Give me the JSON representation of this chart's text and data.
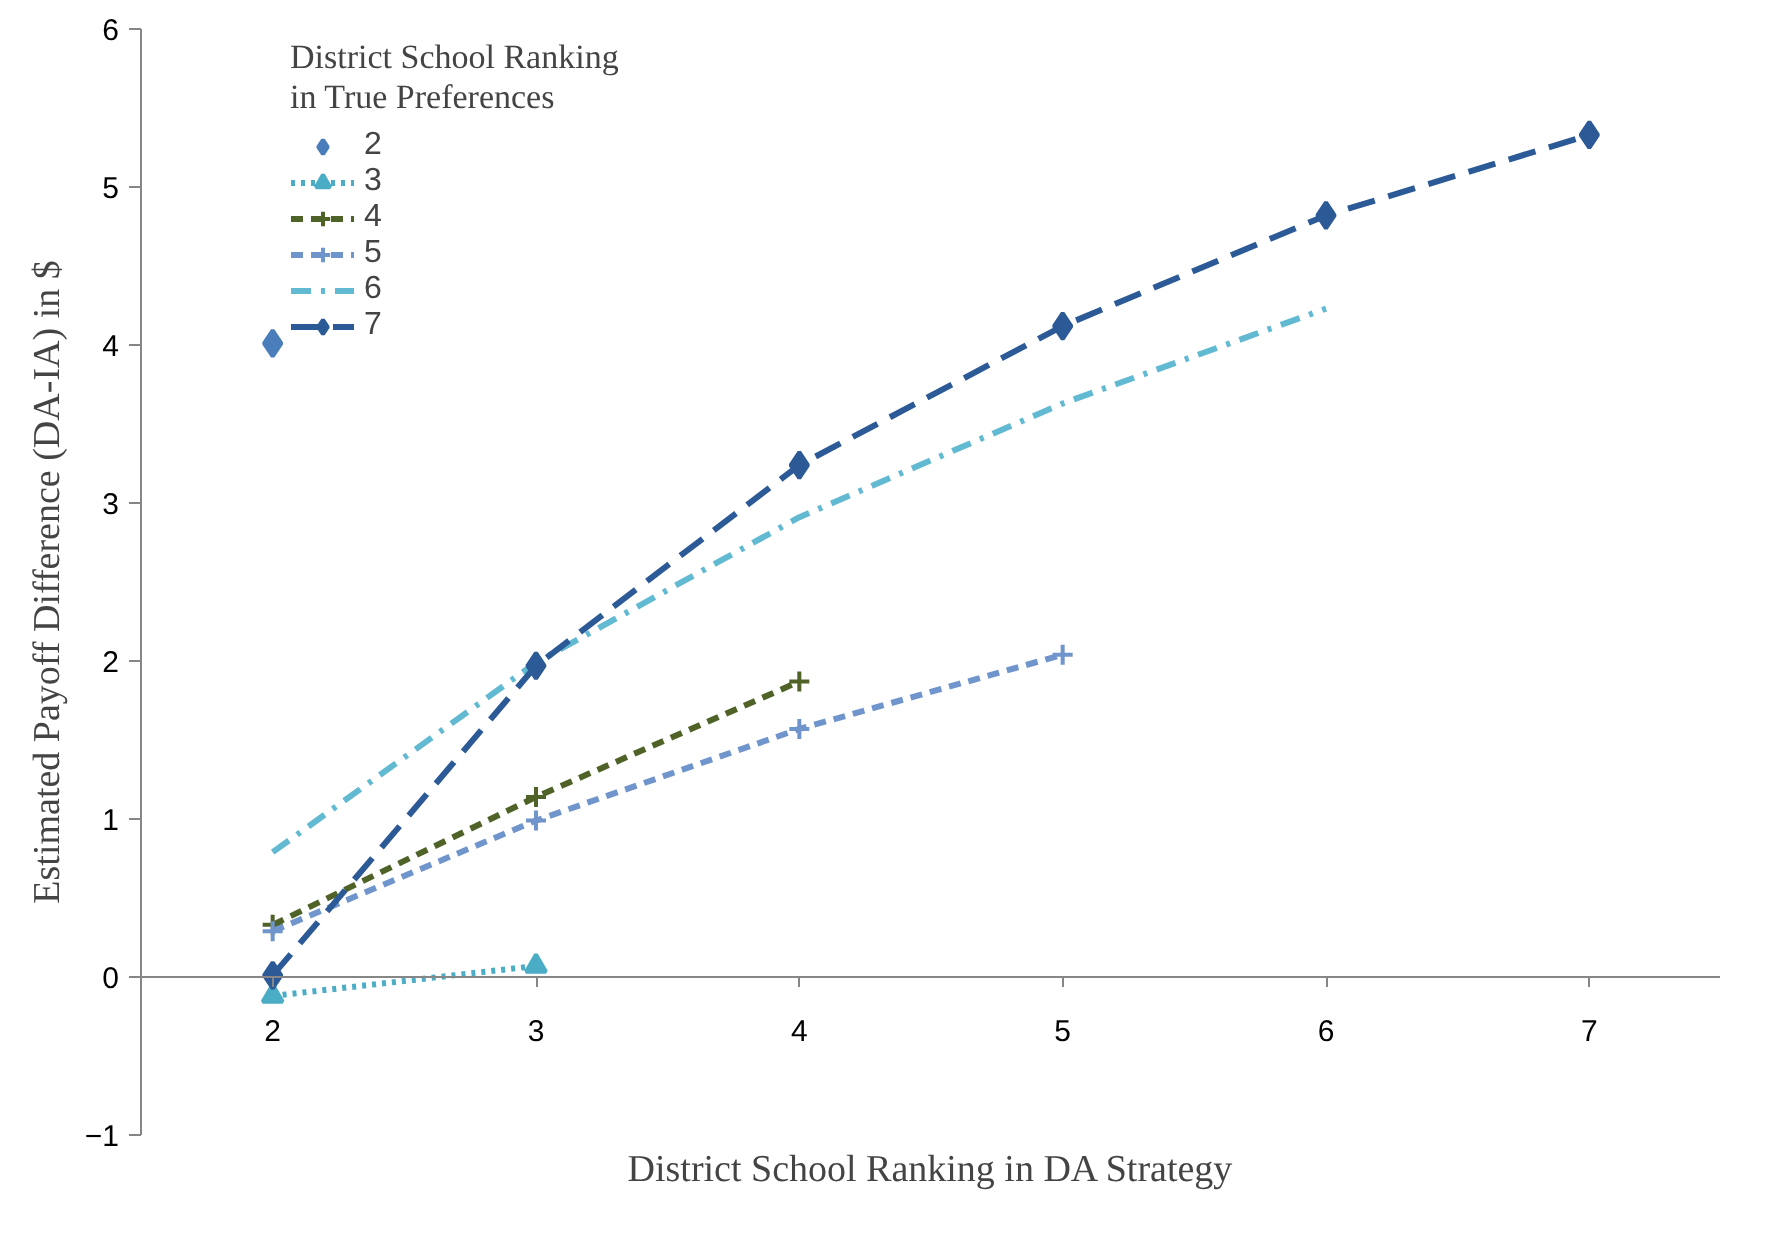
{
  "chart_data": {
    "type": "line",
    "xlabel": "District School Ranking in DA Strategy",
    "ylabel": "Estimated Payoff Difference (DA-IA) in $",
    "legend_title": "District School Ranking\nin True Preferences",
    "legend": "top left",
    "grid": false,
    "xlim": [
      1.5,
      7.5
    ],
    "xticks": [
      2,
      3,
      4,
      5,
      6,
      7
    ],
    "ylim": [
      -1,
      6
    ],
    "yticks": [
      -1,
      0,
      1,
      2,
      3,
      4,
      5,
      6
    ],
    "series": [
      {
        "name": "2",
        "color": "#4a7ebb",
        "x": [
          2
        ],
        "values": [
          4.01
        ],
        "marker": "diamond",
        "line_style": "solid"
      },
      {
        "name": "3",
        "color": "#4bacc6",
        "x": [
          2,
          3
        ],
        "values": [
          -0.12,
          0.07
        ],
        "marker": "triangle",
        "line_style": "dotted"
      },
      {
        "name": "4",
        "color": "#4f6228",
        "x": [
          2,
          3,
          4
        ],
        "values": [
          0.33,
          1.14,
          1.87
        ],
        "marker": "cross",
        "line_style": "dashed"
      },
      {
        "name": "5",
        "color": "#7094cc",
        "x": [
          2,
          3,
          4,
          5
        ],
        "values": [
          0.29,
          0.99,
          1.57,
          2.04
        ],
        "marker": "cross",
        "line_style": "dashed"
      },
      {
        "name": "6",
        "color": "#62b9d2",
        "x": [
          2,
          3,
          4,
          5,
          6
        ],
        "values": [
          0.79,
          1.99,
          2.91,
          3.63,
          4.23
        ],
        "marker": "none",
        "line_style": "dashdot"
      },
      {
        "name": "7",
        "color": "#2c5a96",
        "x": [
          2,
          3,
          4,
          5,
          6,
          7
        ],
        "values": [
          0.01,
          1.97,
          3.24,
          4.12,
          4.82,
          5.33
        ],
        "marker": "diamond",
        "line_style": "longdash"
      }
    ]
  }
}
